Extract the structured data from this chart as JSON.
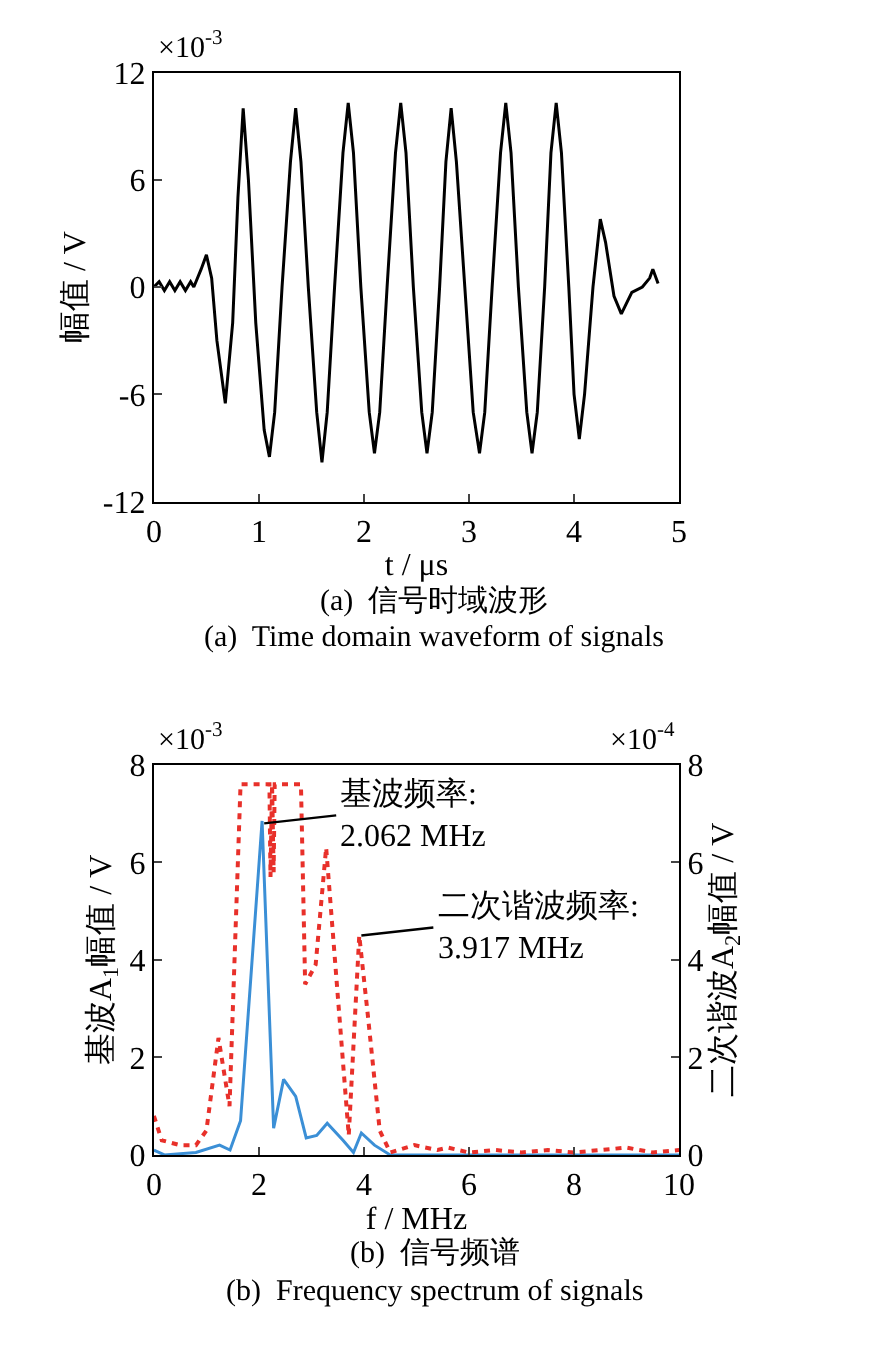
{
  "chart_data": [
    {
      "type": "line",
      "xlabel": "t / μs",
      "ylabel": "幅值 / V",
      "color": "#000000",
      "line_style": "solid",
      "marker": "none",
      "grid": false,
      "x": [
        0,
        0.05,
        0.1,
        0.15,
        0.2,
        0.25,
        0.3,
        0.35,
        0.38,
        0.45,
        0.5,
        0.55,
        0.6,
        0.68,
        0.75,
        0.8,
        0.85,
        0.9,
        0.97,
        1.05,
        1.1,
        1.15,
        1.22,
        1.3,
        1.35,
        1.4,
        1.47,
        1.55,
        1.6,
        1.65,
        1.72,
        1.8,
        1.85,
        1.9,
        1.97,
        2.05,
        2.1,
        2.15,
        2.22,
        2.3,
        2.35,
        2.4,
        2.47,
        2.55,
        2.6,
        2.65,
        2.72,
        2.78,
        2.83,
        2.88,
        2.96,
        3.04,
        3.1,
        3.15,
        3.22,
        3.3,
        3.35,
        3.4,
        3.47,
        3.55,
        3.6,
        3.65,
        3.72,
        3.78,
        3.83,
        3.88,
        3.95,
        4.0,
        4.05,
        4.1,
        4.18,
        4.25,
        4.3,
        4.38,
        4.45,
        4.55,
        4.65,
        4.72,
        4.75,
        4.8
      ],
      "values": [
        0,
        0.3,
        -0.2,
        0.3,
        -0.2,
        0.3,
        -0.2,
        0.3,
        0,
        1,
        1.8,
        0.5,
        -3,
        -6.5,
        -2,
        5,
        10,
        6,
        -2,
        -8,
        -9.5,
        -7,
        0,
        7,
        10,
        7,
        0,
        -7,
        -9.8,
        -7,
        0,
        7.5,
        10.3,
        7.5,
        0,
        -7,
        -9.3,
        -7,
        0,
        7.5,
        10.3,
        7.5,
        0,
        -7,
        -9.3,
        -7,
        0,
        7,
        10,
        7,
        0,
        -7,
        -9.3,
        -7,
        0,
        7.5,
        10.3,
        7.5,
        0,
        -7,
        -9.3,
        -7,
        0,
        7.5,
        10.3,
        7.5,
        0,
        -6,
        -8.5,
        -6,
        0,
        3.8,
        2.5,
        -0.5,
        -1.5,
        -0.3,
        0,
        0.5,
        1,
        0.2
      ],
      "xlim": [
        0,
        5
      ],
      "xticks": [
        0,
        1,
        2,
        3,
        4,
        5
      ],
      "ylim": [
        -12,
        12
      ],
      "yticks": [
        -12,
        -6,
        0,
        6,
        12
      ],
      "annotations": [
        "×10$^{-3}$",
        "(a)  信号时域波形",
        "(a)  Time domain waveform of signals"
      ]
    },
    {
      "type": "line",
      "xlabel": "f / MHz",
      "ylabel": "基波A$_{1}$幅值 / V",
      "y2label": "二次谐波A$_{2}$幅值 / V",
      "marker": "none",
      "grid": false,
      "xlim": [
        0,
        10
      ],
      "xticks": [
        0,
        2,
        4,
        6,
        8,
        10
      ],
      "ylim": [
        0,
        8
      ],
      "yticks": [
        0,
        2,
        4,
        6,
        8
      ],
      "y2lim": [
        0,
        8
      ],
      "y2ticks": [
        0,
        2,
        4,
        6,
        8
      ],
      "series": [
        {
          "color": "#3b8fd6",
          "line_style": "solid",
          "x": [
            0,
            0.2,
            0.8,
            1.25,
            1.45,
            1.65,
            2.06,
            2.28,
            2.47,
            2.7,
            2.9,
            3.1,
            3.3,
            3.6,
            3.8,
            3.95,
            4.2,
            4.5,
            10
          ],
          "values": [
            0.1,
            0,
            0.05,
            0.2,
            0.1,
            0.7,
            6.85,
            0.55,
            1.55,
            1.2,
            0.35,
            0.4,
            0.65,
            0.3,
            0.05,
            0.45,
            0.2,
            0,
            0
          ]
        },
        {
          "color": "#e8302a",
          "line_style": "dotted",
          "axis": "y2",
          "x": [
            0,
            0.15,
            0.5,
            0.8,
            1.0,
            1.23,
            1.44,
            1.65,
            2.2,
            2.22,
            2.25,
            2.28,
            2.3,
            2.8,
            2.88,
            3.08,
            3.28,
            3.71,
            3.91,
            4.08,
            4.3,
            4.5,
            4.96,
            5.4,
            5.6,
            6.0,
            6.5,
            7.0,
            7.5,
            8.0,
            8.5,
            9.0,
            9.5,
            10
          ],
          "values": [
            0.8,
            0.3,
            0.2,
            0.2,
            0.5,
            2.4,
            1.0,
            7.6,
            7.6,
            5.7,
            7.6,
            5.8,
            7.6,
            7.6,
            3.5,
            3.9,
            6.3,
            0.4,
            4.5,
            2.8,
            0.5,
            0.05,
            0.2,
            0.1,
            0.15,
            0.05,
            0.1,
            0.05,
            0.1,
            0.05,
            0.1,
            0.15,
            0.05,
            0.1
          ]
        }
      ],
      "annotations": [
        {
          "text": "基波频率:\n2.062 MHz",
          "x": 2.1,
          "y": 6.8
        },
        {
          "text": "二次谐波频率:\n3.917 MHz",
          "x": 3.95,
          "y": 4.5
        },
        "×10$^{-3}$",
        "×10$^{-4}$",
        "(b)  信号频谱",
        "(b)  Frequency spectrum of signals"
      ]
    }
  ]
}
